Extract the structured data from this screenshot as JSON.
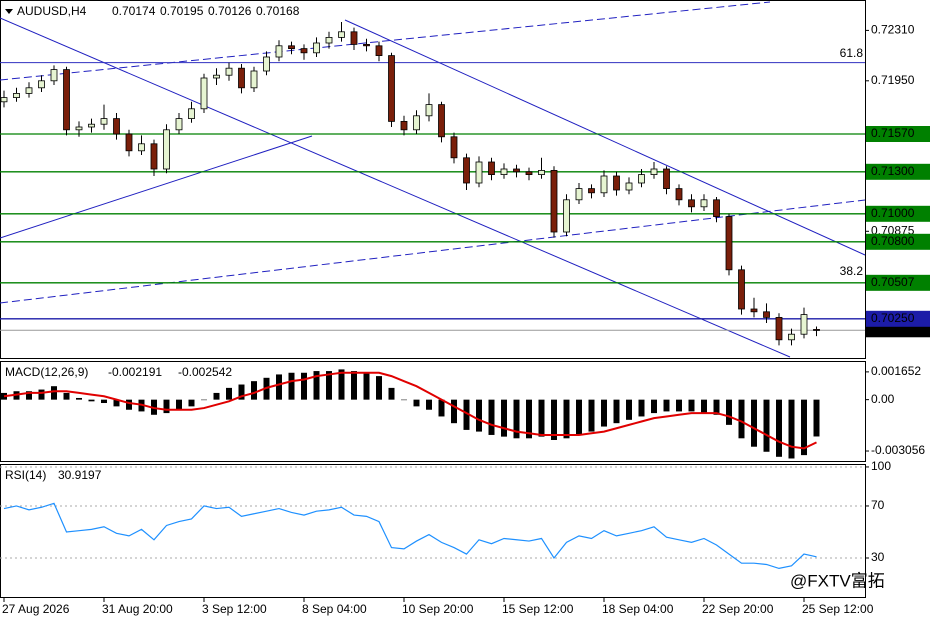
{
  "chart_data": [
    {
      "type": "candlestick",
      "title": "AUDUSD,H4",
      "watermark": "@FXTV富拓",
      "categories": [
        "27 Aug 2026",
        null,
        null,
        null,
        null,
        null,
        null,
        null,
        "31 Aug 20:00",
        null,
        null,
        null,
        null,
        null,
        null,
        null,
        "3 Sep 12:00",
        null,
        null,
        null,
        null,
        null,
        null,
        null,
        "8 Sep 04:00",
        null,
        null,
        null,
        null,
        null,
        null,
        null,
        "10 Sep 20:00",
        null,
        null,
        null,
        null,
        null,
        null,
        null,
        "15 Sep 12:00",
        null,
        null,
        null,
        null,
        null,
        null,
        null,
        "18 Sep 04:00",
        null,
        null,
        null,
        null,
        null,
        null,
        null,
        "22 Sep 20:00",
        null,
        null,
        null,
        null,
        null,
        null,
        null,
        "25 Sep 12:00",
        null
      ],
      "open": [
        0.718,
        0.7183,
        0.7186,
        0.719,
        0.7195,
        0.7203,
        0.716,
        0.7162,
        0.7164,
        0.7168,
        0.7157,
        0.7145,
        0.715,
        0.7132,
        0.716,
        0.7168,
        0.7175,
        0.7197,
        0.7199,
        0.7204,
        0.719,
        0.7202,
        0.7212,
        0.722,
        0.7218,
        0.7215,
        0.7222,
        0.7226,
        0.723,
        0.7221,
        0.722,
        0.7213,
        0.7166,
        0.716,
        0.717,
        0.7178,
        0.7155,
        0.714,
        0.7122,
        0.7137,
        0.7128,
        0.7132,
        0.713,
        0.7128,
        0.7131,
        0.7087,
        0.711,
        0.7118,
        0.7115,
        0.7127,
        0.7117,
        0.7122,
        0.7128,
        0.7132,
        0.7118,
        0.711,
        0.7105,
        0.711,
        0.7098,
        0.706,
        0.7032,
        0.703,
        0.7026,
        0.701,
        0.7014,
        0.70174
      ],
      "high": [
        0.7188,
        0.719,
        0.7194,
        0.7199,
        0.7206,
        0.7205,
        0.7166,
        0.7168,
        0.7178,
        0.7172,
        0.716,
        0.7156,
        0.7153,
        0.7164,
        0.7172,
        0.718,
        0.72,
        0.7204,
        0.7208,
        0.7207,
        0.7205,
        0.7216,
        0.7224,
        0.7223,
        0.7221,
        0.7226,
        0.723,
        0.7237,
        0.7233,
        0.7225,
        0.7223,
        0.7215,
        0.717,
        0.7174,
        0.7186,
        0.718,
        0.7158,
        0.7143,
        0.7141,
        0.714,
        0.7136,
        0.7135,
        0.7133,
        0.714,
        0.7134,
        0.7114,
        0.7122,
        0.7121,
        0.7131,
        0.713,
        0.7126,
        0.7132,
        0.7137,
        0.7134,
        0.7121,
        0.7114,
        0.7114,
        0.7112,
        0.71,
        0.7063,
        0.704,
        0.7036,
        0.7029,
        0.7018,
        0.7033,
        0.70195
      ],
      "low": [
        0.7176,
        0.718,
        0.7183,
        0.7187,
        0.7192,
        0.7156,
        0.7155,
        0.7158,
        0.716,
        0.7153,
        0.7141,
        0.7142,
        0.7127,
        0.7129,
        0.7157,
        0.7165,
        0.7172,
        0.7192,
        0.7195,
        0.7186,
        0.7187,
        0.7199,
        0.7209,
        0.7214,
        0.721,
        0.7212,
        0.7218,
        0.7223,
        0.7217,
        0.7216,
        0.7209,
        0.7162,
        0.7156,
        0.7157,
        0.7166,
        0.7151,
        0.7136,
        0.7117,
        0.7119,
        0.7124,
        0.7125,
        0.7126,
        0.7124,
        0.7125,
        0.7083,
        0.7084,
        0.7107,
        0.7111,
        0.7112,
        0.7113,
        0.7114,
        0.7119,
        0.7125,
        0.7114,
        0.7106,
        0.7101,
        0.7102,
        0.7094,
        0.7056,
        0.7028,
        0.7026,
        0.7022,
        0.7006,
        0.7006,
        0.7011,
        0.70126
      ],
      "close": [
        0.7183,
        0.7186,
        0.719,
        0.7195,
        0.7203,
        0.716,
        0.7162,
        0.7164,
        0.7168,
        0.7157,
        0.7145,
        0.715,
        0.7132,
        0.716,
        0.7168,
        0.7175,
        0.7197,
        0.7199,
        0.7204,
        0.719,
        0.7202,
        0.7212,
        0.722,
        0.7218,
        0.7215,
        0.7222,
        0.7226,
        0.723,
        0.7221,
        0.722,
        0.7213,
        0.7166,
        0.716,
        0.717,
        0.7178,
        0.7155,
        0.714,
        0.7122,
        0.7137,
        0.7128,
        0.7132,
        0.713,
        0.7128,
        0.7131,
        0.7087,
        0.711,
        0.7118,
        0.7115,
        0.7127,
        0.7117,
        0.7122,
        0.7128,
        0.7132,
        0.7118,
        0.711,
        0.7105,
        0.711,
        0.7098,
        0.706,
        0.7032,
        0.703,
        0.7026,
        0.701,
        0.7014,
        0.7028,
        0.70168
      ],
      "up_color": "#e6f4d2",
      "down_color": "#7a1f0a",
      "ylim": [
        0.6997,
        0.7252
      ],
      "yticks": [
        {
          "value": 0.7231,
          "label": "0.72310"
        },
        {
          "value": 0.7195,
          "label": "0.71950"
        },
        {
          "value": 0.70875,
          "label": "0.70875"
        }
      ],
      "levels": [
        {
          "value": 0.7157,
          "label": "0.71570",
          "color": "#008000"
        },
        {
          "value": 0.713,
          "label": "0.71300",
          "color": "#008000"
        },
        {
          "value": 0.71,
          "label": "0.71000",
          "color": "#008000"
        },
        {
          "value": 0.708,
          "label": "0.70800",
          "color": "#008000"
        },
        {
          "value": 0.70507,
          "label": "0.70507",
          "color": "#008000"
        },
        {
          "value": 0.7025,
          "label": "0.70250",
          "color": "#1c1ca8"
        }
      ],
      "fib_levels": [
        {
          "level": 61.8,
          "price": 0.7208
        },
        {
          "level": 38.2,
          "price": 0.7052
        }
      ],
      "last_price": {
        "value": 0.70168,
        "label": "0.70168"
      }
    },
    {
      "type": "macd",
      "title": "MACD(12,26,9)",
      "histogram": [
        0.0004,
        0.0005,
        0.0005,
        0.0006,
        0.0008,
        0.0004,
        0.0001,
        -0.0001,
        -0.0002,
        -0.0004,
        -0.0006,
        -0.0007,
        -0.0009,
        -0.0008,
        -0.0006,
        -0.0004,
        0.0,
        0.0004,
        0.0007,
        0.0009,
        0.0011,
        0.0013,
        0.0015,
        0.0016,
        0.0016,
        0.0017,
        0.0017,
        0.0018,
        0.0017,
        0.0016,
        0.0014,
        0.0007,
        0.0,
        -0.0004,
        -0.0006,
        -0.001,
        -0.0014,
        -0.0018,
        -0.0019,
        -0.0021,
        -0.0022,
        -0.0023,
        -0.0023,
        -0.0022,
        -0.0024,
        -0.0023,
        -0.0021,
        -0.0019,
        -0.0016,
        -0.0014,
        -0.0012,
        -0.001,
        -0.0008,
        -0.0007,
        -0.0007,
        -0.0007,
        -0.0008,
        -0.0009,
        -0.0015,
        -0.0023,
        -0.0028,
        -0.0031,
        -0.0034,
        -0.0035,
        -0.0033,
        -0.002191
      ],
      "signal": [
        0.0002,
        0.0003,
        0.0004,
        0.0004,
        0.0005,
        0.0005,
        0.0004,
        0.0003,
        0.0002,
        0.0,
        -0.0002,
        -0.0003,
        -0.0005,
        -0.0006,
        -0.0006,
        -0.0006,
        -0.0005,
        -0.0003,
        -0.0001,
        0.0002,
        0.0004,
        0.0007,
        0.0009,
        0.0011,
        0.0012,
        0.0014,
        0.0015,
        0.0016,
        0.0016,
        0.0016,
        0.0016,
        0.0014,
        0.0011,
        0.0008,
        0.0004,
        0.0,
        -0.0004,
        -0.0008,
        -0.0012,
        -0.0015,
        -0.0017,
        -0.0019,
        -0.002,
        -0.0021,
        -0.0021,
        -0.0021,
        -0.0021,
        -0.002,
        -0.0019,
        -0.0017,
        -0.0015,
        -0.0013,
        -0.0011,
        -0.001,
        -0.0009,
        -0.0008,
        -0.0008,
        -0.0008,
        -0.001,
        -0.0013,
        -0.0017,
        -0.0021,
        -0.0025,
        -0.0028,
        -0.0029,
        -0.002542
      ],
      "histogram_color": "#000000",
      "signal_color": "#e00000",
      "ylim": [
        -0.00365,
        0.00224
      ],
      "yticks": [
        0.001652,
        {
          "value": 0,
          "label": "0.00"
        },
        -0.003056
      ]
    },
    {
      "type": "rsi",
      "title": "RSI(14)",
      "values": [
        68,
        70,
        67,
        69,
        72,
        50,
        51,
        52,
        54,
        49,
        47,
        52,
        44,
        55,
        58,
        60,
        70,
        68,
        69,
        62,
        64,
        66,
        68,
        65,
        63,
        66,
        67,
        69,
        63,
        62,
        58,
        38,
        37,
        43,
        48,
        42,
        38,
        33,
        44,
        41,
        45,
        44,
        43,
        45,
        30,
        42,
        47,
        45,
        51,
        47,
        49,
        51,
        54,
        46,
        44,
        42,
        45,
        40,
        33,
        26,
        26,
        25,
        22,
        24,
        33,
        30.9197
      ],
      "color": "#1e90ff",
      "ylim": [
        0,
        101.5
      ],
      "yticks": [
        100,
        70,
        30
      ]
    }
  ]
}
